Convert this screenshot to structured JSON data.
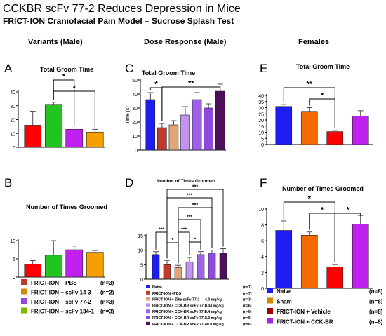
{
  "header": {
    "title": "CCKBR scFv 77-2 Reduces Depression in Mice",
    "subtitle": "FRICT-ION Craniofacial Pain Model – Sucrose Splash Test"
  },
  "columns": [
    "Variants (Male)",
    "Dose Response (Male)",
    "Females"
  ],
  "colors": {
    "red": "#ff0000",
    "green": "#22c41f",
    "purple": "#c020f0",
    "orange": "#f5a000",
    "blue": "#1d1df2",
    "darkred": "#c0392b",
    "lightorange": "#e0a37a",
    "lavender": "#c293f0",
    "violet": "#9f62e6",
    "medpurple": "#8f49dc",
    "darkpurple": "#4b0f5c",
    "sham": "#d08a00",
    "maroon": "#9c0000",
    "orchid": "#a02ae0"
  },
  "chart_data": [
    {
      "panel": "A",
      "type": "bar",
      "title": "Total Groom Time",
      "ylabel": "",
      "ylim": [
        0,
        40
      ],
      "yticks": [
        0,
        10,
        20,
        30,
        40
      ],
      "categories": [
        "FRICT-ION + PBS",
        "FRICT-ION + scFv 14-3",
        "FRICT-ION + scFv 77-2",
        "FRICT-ION + scFv 134-1"
      ],
      "values": [
        16,
        31,
        13,
        11
      ],
      "errors": [
        10,
        1.5,
        1,
        2
      ],
      "colors": [
        "#ff0000",
        "#22c41f",
        "#c020f0",
        "#f5a000"
      ],
      "significance": [
        {
          "from": 1,
          "to": 2,
          "label": "*"
        },
        {
          "from": 1,
          "to": 3,
          "label": "*"
        }
      ]
    },
    {
      "panel": "B",
      "type": "bar",
      "title": "Number of Times Groomed",
      "ylabel": "",
      "ylim": [
        0,
        10
      ],
      "yticks": [
        0,
        5,
        10
      ],
      "categories": [
        "FRICT-ION + PBS",
        "FRICT-ION + scFv 14-3",
        "FRICT-ION + scFv 77-2",
        "FRICT-ION + scFv 134-1"
      ],
      "values": [
        3.5,
        6,
        7.5,
        6.8
      ],
      "errors": [
        1,
        4,
        1,
        0.5
      ],
      "colors": [
        "#ff0000",
        "#22c41f",
        "#c020f0",
        "#f5a000"
      ],
      "significance": [],
      "legend": [
        {
          "label": "FRICT-ION + PBS",
          "n": "(n=3)",
          "color": "#c0392b"
        },
        {
          "label": "FRICT-ION + scFv 14-3",
          "n": "(n=2)",
          "color": "#d08a00"
        },
        {
          "label": "FRICT-ION + scFv 77-2",
          "n": "(n=3)",
          "color": "#8f49dc"
        },
        {
          "label": "FRICT-ION + scFv 134-1",
          "n": "(n=3)",
          "color": "#7fb800"
        }
      ]
    },
    {
      "panel": "C",
      "type": "bar",
      "title": "Total Groom Time",
      "ylabel": "Time (s)",
      "ylim": [
        0,
        50
      ],
      "yticks": [
        0,
        10,
        20,
        30,
        40,
        50
      ],
      "categories": [
        "Naive",
        "FRICT-ION +PBS",
        "FRICT-ION + Zika scFv 77-2",
        "FRICT-ION + CCK-BR scFv 77-2 0.04",
        "FRICT-ION + CCK-BR scFv 77-2 0.4",
        "FRICT-ION + CCK-BR scFv 77-2 4.0",
        "FRICT-ION + CCK-BR scFv 77-2 40.0"
      ],
      "values": [
        36,
        16,
        18,
        25,
        36,
        30,
        42
      ],
      "errors": [
        5,
        3,
        3,
        6,
        5,
        3,
        5
      ],
      "colors": [
        "#1d1df2",
        "#c0392b",
        "#e0a37a",
        "#c293f0",
        "#9f62e6",
        "#8f49dc",
        "#4b0f5c"
      ],
      "significance": [
        {
          "from": 0,
          "to": 1,
          "label": "*"
        },
        {
          "from": 1,
          "to": 6,
          "label": "**"
        }
      ]
    },
    {
      "panel": "D",
      "type": "bar",
      "title": "Number of Times Groomed",
      "ylabel": "",
      "ylim": [
        0,
        15
      ],
      "yticks": [
        0,
        5,
        10,
        15
      ],
      "categories": [
        "Naive",
        "FRICT-ION +PBS",
        "FRICT-ION + Zika scFv 77-2",
        "FRICT-ION + CCK-BR scFv 77-2",
        "FRICT-ION + CCK-BR scFv 77-2",
        "FRICT-ION + CCK-BR scFv 77-2",
        "FRICT-ION + CCK-BR scFv 77-2"
      ],
      "values": [
        8.5,
        5,
        4,
        6,
        8.5,
        9,
        9
      ],
      "errors": [
        1,
        1.5,
        0.8,
        1.5,
        1,
        1,
        1.5
      ],
      "colors": [
        "#1d1df2",
        "#c0392b",
        "#e0a37a",
        "#c293f0",
        "#9f62e6",
        "#8f49dc",
        "#4b0f5c"
      ],
      "significance": [
        {
          "from": 1,
          "to": 6,
          "label": "***"
        },
        {
          "from": 1,
          "to": 5,
          "label": "***"
        },
        {
          "from": 2,
          "to": 5,
          "label": "***"
        },
        {
          "from": 2,
          "to": 4,
          "label": "***"
        },
        {
          "from": 0,
          "to": 1,
          "label": "***"
        },
        {
          "from": 2,
          "to": 3,
          "label": "***"
        },
        {
          "from": 1,
          "to": 2,
          "label": "*"
        },
        {
          "from": 3,
          "to": 4,
          "label": "*"
        }
      ],
      "legend": [
        {
          "label": "Naive",
          "dose": "",
          "n": "(n=7)",
          "color": "#1d1df2"
        },
        {
          "label": "FRICT-ION +PBS",
          "dose": "",
          "n": "(n=7)",
          "color": "#c0392b"
        },
        {
          "label": "FRICT-ION + Zika scFv 77-2",
          "dose": "4.0 mg/kg",
          "n": "(n=3)",
          "color": "#e0a37a"
        },
        {
          "label": "FRICT-ION + CCK-BR scFv 77-2",
          "dose": "0.04 mg/kg",
          "n": "(n=6)",
          "color": "#c293f0"
        },
        {
          "label": "FRICT-ION + CCK-BR scFv 77-2",
          "dose": "0.4 mg/kg",
          "n": "(n=6)",
          "color": "#9f62e6"
        },
        {
          "label": "FRICT-ION + CCK-BR scFv 77-2",
          "dose": "4.0 mg/kg",
          "n": "(n=6)",
          "color": "#8f49dc"
        },
        {
          "label": "FRICT-ION + CCK-BR scFv 77-2",
          "dose": "40.0 mg/kg",
          "n": "(n=6)",
          "color": "#4b0f5c"
        }
      ]
    },
    {
      "panel": "E",
      "type": "bar",
      "title": "Total Groom Time",
      "ylabel": "",
      "ylim": [
        0,
        40
      ],
      "yticks": [
        0,
        5,
        10,
        15,
        20,
        25,
        30,
        35,
        40
      ],
      "categories": [
        "Naive",
        "Sham",
        "FRICT-ION + Vehicle",
        "FRICT-ION + CCK-BR"
      ],
      "values": [
        31,
        27,
        10.5,
        23
      ],
      "errors": [
        1.5,
        3,
        1,
        4.5
      ],
      "colors": [
        "#1d1df2",
        "#f56a00",
        "#ff0000",
        "#c020f0"
      ],
      "significance": [
        {
          "from": 0,
          "to": 2,
          "label": "**"
        },
        {
          "from": 1,
          "to": 2,
          "label": "*"
        }
      ]
    },
    {
      "panel": "F",
      "type": "bar",
      "title": "Number of Times Groomed",
      "ylabel": "",
      "ylim": [
        0,
        10
      ],
      "yticks": [
        0,
        2,
        4,
        6,
        8,
        10
      ],
      "categories": [
        "Naive",
        "Sham",
        "FRICT-ION + Vehicle",
        "FRICT-ION + CCK-BR"
      ],
      "values": [
        7.3,
        6.7,
        2.7,
        8.1
      ],
      "errors": [
        1.2,
        0.4,
        0.3,
        1.1
      ],
      "colors": [
        "#1d1df2",
        "#f56a00",
        "#ff0000",
        "#c020f0"
      ],
      "significance": [
        {
          "from": 0,
          "to": 2,
          "label": "*"
        },
        {
          "from": 1,
          "to": 2,
          "label": "*"
        },
        {
          "from": 2,
          "to": 3,
          "label": "*"
        }
      ],
      "legend": [
        {
          "label": "Naive",
          "n": "(n=8)",
          "color": "#1d1df2"
        },
        {
          "label": "Sham",
          "n": "(n=8)",
          "color": "#d08a00"
        },
        {
          "label": "FRICT-ION + Vehicle",
          "n": "(n=8)",
          "color": "#9c0000"
        },
        {
          "label": "FRICT-ION + CCK-BR",
          "n": "(n=8)",
          "color": "#a02ae0"
        }
      ]
    }
  ]
}
